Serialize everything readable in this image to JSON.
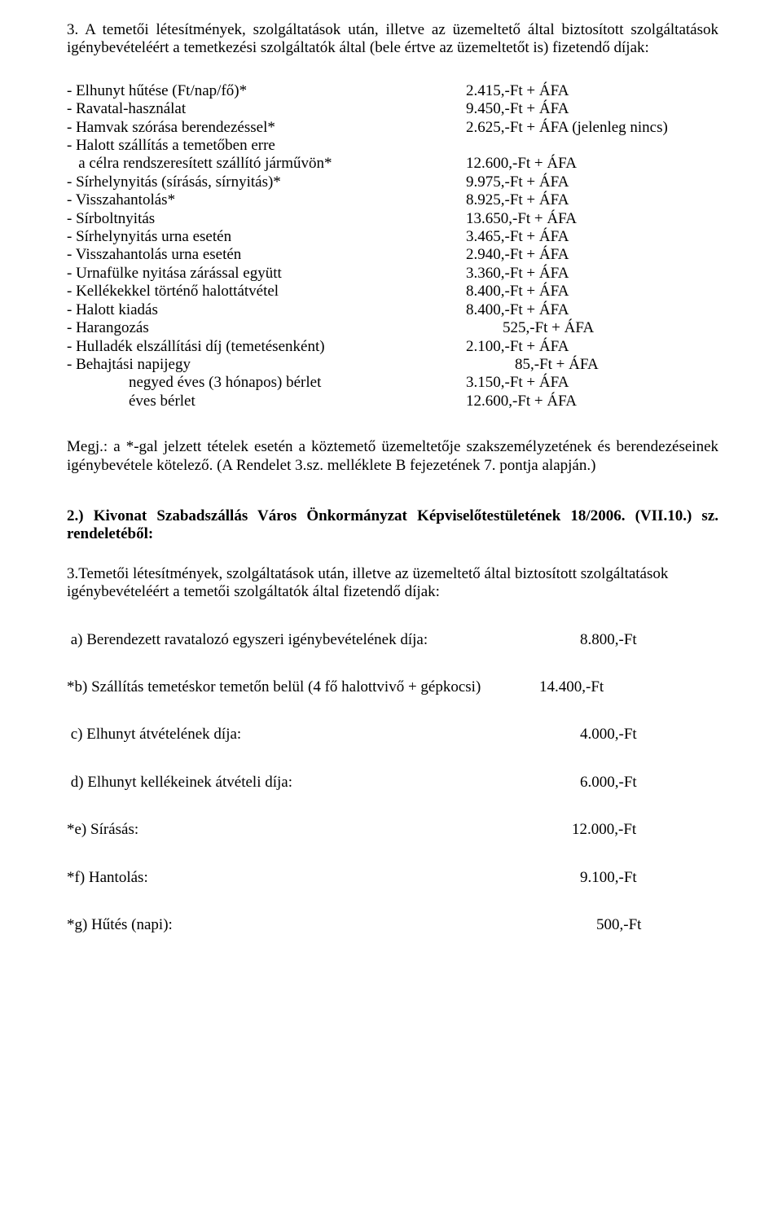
{
  "intro": {
    "num": "3.",
    "text": "A temetői létesítmények, szolgáltatások után, illetve az üzemeltető által biztosított szolgáltatások igénybevételéért a temetkezési szolgáltatók által (bele értve az üzemeltetőt is) fizetendő díjak:"
  },
  "items": [
    {
      "label": "- Elhunyt hűtése (Ft/nap/fő)*",
      "value": "2.415,-Ft + ÁFA"
    },
    {
      "label": "- Ravatal-használat",
      "value": "9.450,-Ft + ÁFA"
    },
    {
      "label": "- Hamvak szórása berendezéssel*",
      "value": "2.625,-Ft + ÁFA (jelenleg nincs)"
    },
    {
      "label": "- Halott szállítás a temetőben erre",
      "value": ""
    },
    {
      "label": "   a célra rendszeresített szállító járművön*",
      "value": "12.600,-Ft + ÁFA"
    },
    {
      "label": "- Sírhelynyitás (sírásás, sírnyitás)*",
      "value": "9.975,-Ft + ÁFA"
    },
    {
      "label": "- Visszahantolás*",
      "value": "8.925,-Ft + ÁFA"
    },
    {
      "label": "- Sírboltnyitás",
      "value": "13.650,-Ft + ÁFA"
    },
    {
      "label": "- Sírhelynyitás urna esetén",
      "value": "3.465,-Ft + ÁFA"
    },
    {
      "label": "- Visszahantolás urna esetén",
      "value": "2.940,-Ft + ÁFA"
    },
    {
      "label": "- Urnafülke nyitása zárással együtt",
      "value": "3.360,-Ft + ÁFA"
    },
    {
      "label": "- Kellékekkel történő halottátvétel",
      "value": "8.400,-Ft + ÁFA"
    },
    {
      "label": "- Halott kiadás",
      "value": "8.400,-Ft + ÁFA"
    },
    {
      "label": "- Harangozás",
      "value": "525,-Ft + ÁFA",
      "pad": "center45"
    },
    {
      "label": "- Hulladék elszállítási díj (temetésenként)",
      "value": "2.100,-Ft + ÁFA"
    },
    {
      "label": "- Behajtási napijegy",
      "value": "85,-Ft + ÁFA",
      "pad": "center60"
    },
    {
      "label": "                negyed éves (3 hónapos) bérlet",
      "value": "3.150,-Ft + ÁFA"
    },
    {
      "label": "                éves bérlet",
      "value": "12.600,-Ft + ÁFA"
    }
  ],
  "note": "Megj.: a *-gal jelzett tételek esetén a köztemető üzemeltetője szakszemélyzetének és berendezéseinek igénybevétele kötelező. (A Rendelet 3.sz. mellékletе B fejezetének 7. pontja alapján.)",
  "sec2": {
    "title": "2.) Kivonat Szabadszállás Város Önkormányzat Képviselőtestületének 18/2006. (VII.10.) sz. rendeletéből:",
    "intro": "3.Temetői létesítmények, szolgáltatások után, illetve az üzemeltető által biztosított szolgáltatások igénybevételéért a temetői szolgáltatók által fizetendő díjak:",
    "fees": [
      {
        "label": " a) Berendezett ravatalozó egyszeri igénybevételének díja:",
        "value": "8.800,-Ft"
      },
      {
        "label": "*b) Szállítás temetéskor temetőn belül (4 fő halottvivő + gépkocsi)",
        "value": "14.400,-Ft",
        "tight": true
      },
      {
        "label": " c) Elhunyt átvételének díja:",
        "value": "4.000,-Ft"
      },
      {
        "label": " d) Elhunyt kellékeinek átvételi díja:",
        "value": "6.000,-Ft"
      },
      {
        "label": "*e) Sírásás:",
        "value": "12.000,-Ft",
        "wide": true
      },
      {
        "label": "*f) Hantolás:",
        "value": "9.100,-Ft"
      },
      {
        "label": "*g) Hűtés (napi):",
        "value": "500,-Ft",
        "narrow": true
      }
    ]
  }
}
